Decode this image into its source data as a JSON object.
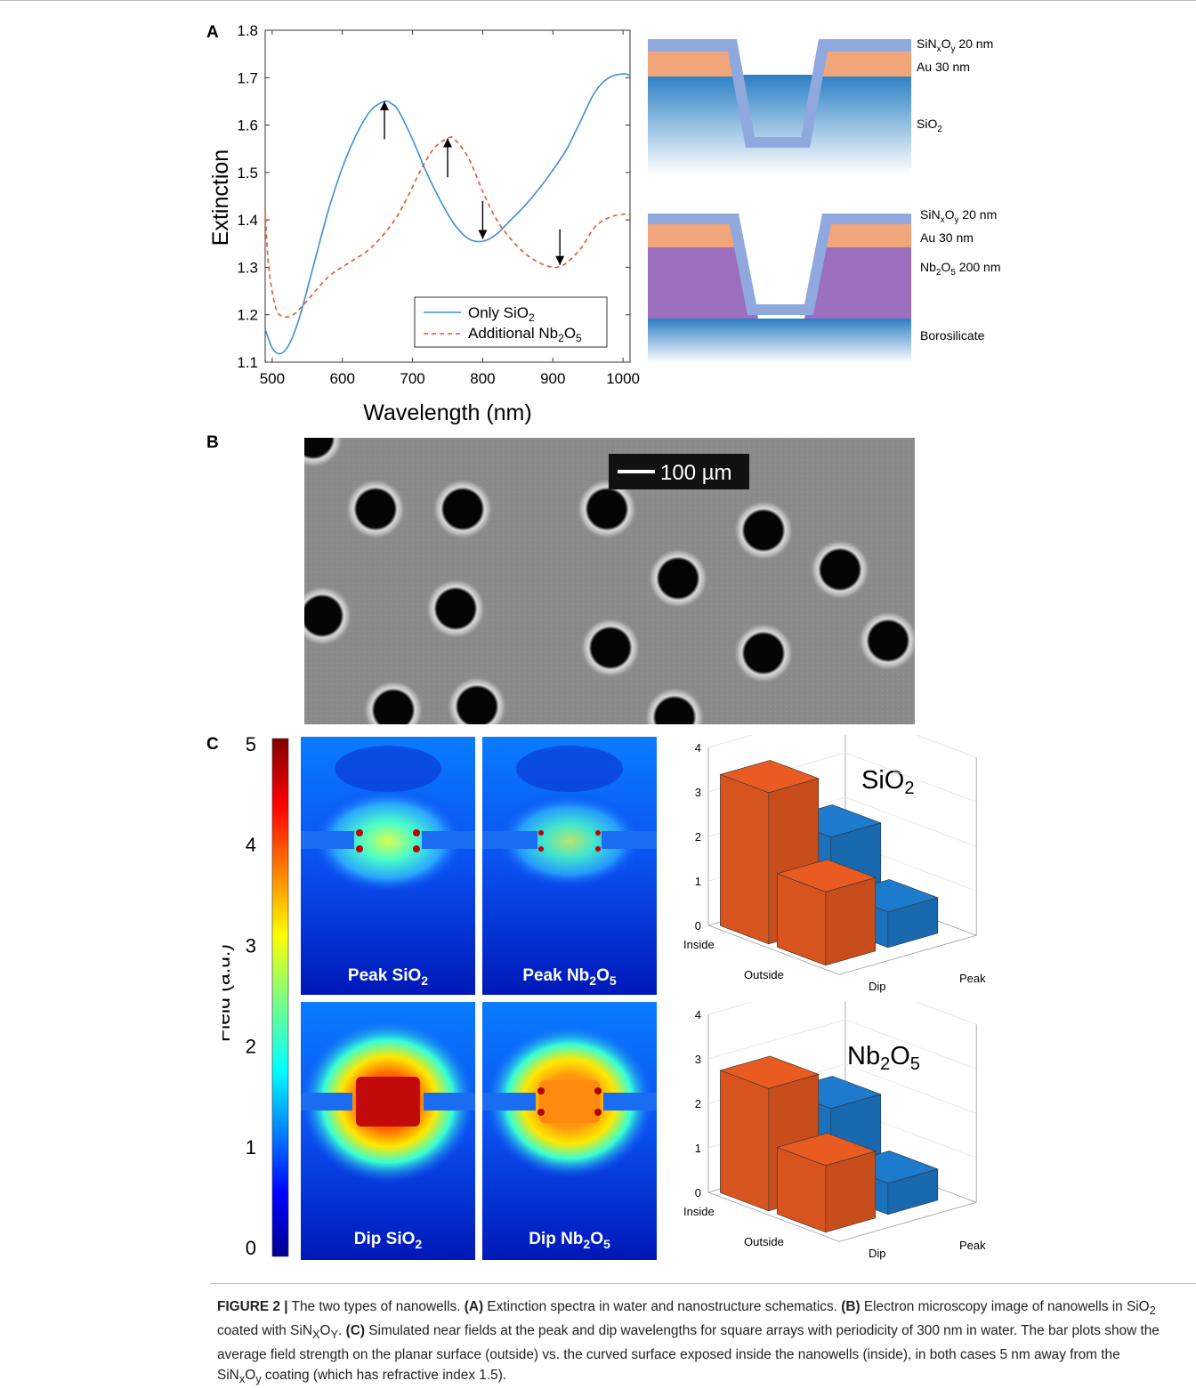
{
  "panels": {
    "a": "A",
    "b": "B",
    "c": "C"
  },
  "chart_data": {
    "type": "line",
    "xlabel": "Wavelength (nm)",
    "ylabel": "Extinction",
    "xlim": [
      490,
      1010
    ],
    "ylim": [
      1.1,
      1.8
    ],
    "x_ticks": [
      "500",
      "600",
      "700",
      "800",
      "900",
      "1000"
    ],
    "y_ticks": [
      "1.1",
      "1.2",
      "1.3",
      "1.4",
      "1.5",
      "1.6",
      "1.7",
      "1.8"
    ],
    "legend_position": "bottom-right",
    "series": [
      {
        "name_prefix": "Only SiO",
        "name_sub": "2",
        "color": "#3c8fd6",
        "style": "solid",
        "x": [
          490,
          500,
          512,
          525,
          540,
          560,
          580,
          600,
          620,
          640,
          660,
          670,
          680,
          700,
          720,
          740,
          760,
          780,
          800,
          820,
          840,
          860,
          880,
          900,
          920,
          940,
          960,
          980,
          1000,
          1010
        ],
        "y": [
          1.17,
          1.13,
          1.118,
          1.14,
          1.2,
          1.31,
          1.42,
          1.51,
          1.58,
          1.63,
          1.65,
          1.645,
          1.63,
          1.57,
          1.5,
          1.44,
          1.39,
          1.36,
          1.355,
          1.37,
          1.4,
          1.43,
          1.465,
          1.505,
          1.55,
          1.61,
          1.67,
          1.7,
          1.708,
          1.705
        ]
      },
      {
        "name_prefix": "Additional Nb",
        "name_sub1": "2",
        "name_mid": "O",
        "name_sub2": "5",
        "color": "#e8562a",
        "style": "dashed",
        "x": [
          490,
          495,
          505,
          515,
          530,
          550,
          580,
          610,
          640,
          670,
          690,
          710,
          730,
          750,
          760,
          780,
          800,
          820,
          840,
          860,
          880,
          900,
          910,
          920,
          940,
          960,
          980,
          1000,
          1010
        ],
        "y": [
          1.42,
          1.3,
          1.215,
          1.197,
          1.2,
          1.23,
          1.28,
          1.31,
          1.34,
          1.39,
          1.44,
          1.5,
          1.55,
          1.572,
          1.57,
          1.53,
          1.46,
          1.4,
          1.36,
          1.33,
          1.31,
          1.3,
          1.302,
          1.31,
          1.34,
          1.385,
          1.405,
          1.412,
          1.412
        ]
      }
    ],
    "arrows": [
      {
        "x": 660,
        "y_from": 1.57,
        "y_to": 1.65,
        "dir": "up"
      },
      {
        "x": 750,
        "y_from": 1.49,
        "y_to": 1.572,
        "dir": "up"
      },
      {
        "x": 800,
        "y_from": 1.44,
        "y_to": 1.36,
        "dir": "down"
      },
      {
        "x": 910,
        "y_from": 1.38,
        "y_to": 1.305,
        "dir": "down"
      }
    ]
  },
  "schematic_top": {
    "layer1": "SiN",
    "layer1_sub_x": "x",
    "layer1_mid": "O",
    "layer1_sub_y": "y",
    "layer1_tail": " 20 nm",
    "layer2": "Au 30 nm",
    "layer3": "SiO",
    "layer3_sub": "2",
    "colors": {
      "sin": "#8fa8dd",
      "au": "#f0a57a",
      "sio2_top": "#2a7fc4",
      "sio2_bottom": "#ffffff"
    }
  },
  "schematic_bottom": {
    "layer1": "SiN",
    "layer1_sub_x": "x",
    "layer1_mid": "O",
    "layer1_sub_y": "y",
    "layer1_tail": " 20 nm",
    "layer2": "Au 30 nm",
    "layer3": "Nb",
    "layer3_sub1": "2",
    "layer3_mid": "O",
    "layer3_sub2": "5",
    "layer3_tail": " 200 nm",
    "layer4": "Borosilicate",
    "colors": {
      "sin": "#8fa8dd",
      "au": "#f0a57a",
      "nb": "#9b6fbd",
      "boro_top": "#2a7fc4"
    }
  },
  "micrograph": {
    "scalebar": "100 µm"
  },
  "colorbar": {
    "label": "Field (a.u.)",
    "ticks": [
      "5",
      "4",
      "3",
      "2",
      "1",
      "0"
    ]
  },
  "field_maps": {
    "tl": {
      "prefix": "Peak SiO",
      "sub": "2"
    },
    "tr": {
      "prefix": "Peak Nb",
      "sub1": "2",
      "mid": "O",
      "sub2": "5"
    },
    "bl": {
      "prefix": "Dip SiO",
      "sub": "2"
    },
    "br": {
      "prefix": "Dip Nb",
      "sub1": "2",
      "mid": "O",
      "sub2": "5"
    }
  },
  "bar3d_top": {
    "title_prefix": "SiO",
    "title_sub": "2",
    "z_ticks": [
      "0",
      "1",
      "2",
      "3",
      "4"
    ],
    "axis_labels": {
      "inside": "Inside",
      "outside": "Outside",
      "dip": "Dip",
      "peak": "Peak"
    },
    "values": {
      "inside_dip": 3.4,
      "inside_peak": 2.0,
      "outside_dip": 1.65,
      "outside_peak": 0.8
    },
    "colors": {
      "dip": "#d8541f",
      "peak": "#1a72bd"
    }
  },
  "bar3d_bottom": {
    "title_prefix": "Nb",
    "title_sub1": "2",
    "title_mid": "O",
    "title_sub2": "5",
    "z_ticks": [
      "0",
      "1",
      "2",
      "3",
      "4"
    ],
    "axis_labels": {
      "inside": "Inside",
      "outside": "Outside",
      "dip": "Dip",
      "peak": "Peak"
    },
    "values": {
      "inside_dip": 2.75,
      "inside_peak": 1.9,
      "outside_dip": 1.5,
      "outside_peak": 0.7
    },
    "colors": {
      "dip": "#d8541f",
      "peak": "#1a72bd"
    }
  },
  "caption": {
    "fig": "FIGURE 2 |",
    "t1": " The two types of nanowells. ",
    "a": "(A)",
    "t2": " Extinction spectra in water and nanostructure schematics. ",
    "b": "(B)",
    "t3": " Electron microscopy image of nanowells in SiO",
    "t3_sub": "2",
    "t4": " coated with SiN",
    "t4_subx": "X",
    "t4_mid": "O",
    "t4_suby": "Y",
    "t5": ". ",
    "c": "(C)",
    "t6": " Simulated near fields at the peak and dip wavelengths for square arrays with periodicity of 300 nm in water. The bar plots show the average field strength on the planar surface (outside) vs. the curved surface exposed inside the nanowells (inside), in both cases 5 nm away from the SiN",
    "t6_subx": "x",
    "t6_mid": "O",
    "t6_suby": "y",
    "t7": " coating (which has refractive index 1.5)."
  }
}
